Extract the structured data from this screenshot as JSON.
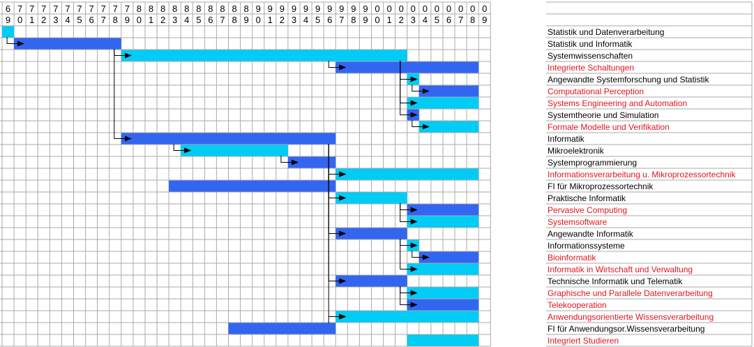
{
  "chart_data": {
    "type": "gantt",
    "year_header": [
      {
        "year": 1969,
        "tens": "6",
        "ones": "9"
      },
      {
        "year": 1970,
        "tens": "7",
        "ones": "0"
      },
      {
        "year": 1971,
        "tens": "7",
        "ones": "1"
      },
      {
        "year": 1972,
        "tens": "7",
        "ones": "2"
      },
      {
        "year": 1973,
        "tens": "7",
        "ones": "3"
      },
      {
        "year": 1974,
        "tens": "7",
        "ones": "4"
      },
      {
        "year": 1975,
        "tens": "7",
        "ones": "5"
      },
      {
        "year": 1976,
        "tens": "7",
        "ones": "6"
      },
      {
        "year": 1977,
        "tens": "7",
        "ones": "7"
      },
      {
        "year": 1978,
        "tens": "7",
        "ones": "8"
      },
      {
        "year": 1979,
        "tens": "7",
        "ones": "9"
      },
      {
        "year": 1980,
        "tens": "8",
        "ones": "0"
      },
      {
        "year": 1981,
        "tens": "8",
        "ones": "1"
      },
      {
        "year": 1982,
        "tens": "8",
        "ones": "2"
      },
      {
        "year": 1983,
        "tens": "8",
        "ones": "3"
      },
      {
        "year": 1984,
        "tens": "8",
        "ones": "4"
      },
      {
        "year": 1985,
        "tens": "8",
        "ones": "5"
      },
      {
        "year": 1986,
        "tens": "8",
        "ones": "6"
      },
      {
        "year": 1987,
        "tens": "8",
        "ones": "7"
      },
      {
        "year": 1988,
        "tens": "8",
        "ones": "8"
      },
      {
        "year": 1989,
        "tens": "8",
        "ones": "9"
      },
      {
        "year": 1990,
        "tens": "9",
        "ones": "0"
      },
      {
        "year": 1991,
        "tens": "9",
        "ones": "1"
      },
      {
        "year": 1992,
        "tens": "9",
        "ones": "2"
      },
      {
        "year": 1993,
        "tens": "9",
        "ones": "3"
      },
      {
        "year": 1994,
        "tens": "9",
        "ones": "4"
      },
      {
        "year": 1995,
        "tens": "9",
        "ones": "5"
      },
      {
        "year": 1996,
        "tens": "9",
        "ones": "6"
      },
      {
        "year": 1997,
        "tens": "9",
        "ones": "7"
      },
      {
        "year": 1998,
        "tens": "9",
        "ones": "8"
      },
      {
        "year": 1999,
        "tens": "9",
        "ones": "9"
      },
      {
        "year": 2000,
        "tens": "0",
        "ones": "0"
      },
      {
        "year": 2001,
        "tens": "0",
        "ones": "1"
      },
      {
        "year": 2002,
        "tens": "0",
        "ones": "2"
      },
      {
        "year": 2003,
        "tens": "0",
        "ones": "3"
      },
      {
        "year": 2004,
        "tens": "0",
        "ones": "4"
      },
      {
        "year": 2005,
        "tens": "0",
        "ones": "5"
      },
      {
        "year": 2006,
        "tens": "0",
        "ones": "6"
      },
      {
        "year": 2007,
        "tens": "0",
        "ones": "7"
      },
      {
        "year": 2008,
        "tens": "0",
        "ones": "8"
      },
      {
        "year": 2009,
        "tens": "0",
        "ones": "9"
      }
    ],
    "colors": {
      "bar_blue": "#3366f0",
      "bar_cyan": "#00ccf5",
      "label_black": "#000000",
      "label_red": "#e0151b",
      "grid": "#aaaaaa",
      "connector": "#000000"
    },
    "rows": [
      {
        "label": "Statistik und Datenverarbeitung",
        "start": 1969,
        "end": 1970,
        "color": "cyan",
        "label_color": "black"
      },
      {
        "label": "Statistik und Informatik",
        "start": 1970,
        "end": 1979,
        "color": "blue",
        "label_color": "black"
      },
      {
        "label": "Systemwissenschaften",
        "start": 1979,
        "end": 2003,
        "color": "cyan",
        "label_color": "black"
      },
      {
        "label": "Integrierte Schaltungen",
        "start": 1997,
        "end": 2009,
        "color": "blue",
        "label_color": "red"
      },
      {
        "label": "Angewandte Systemforschung und Statistik",
        "start": 2003,
        "end": 2004,
        "color": "cyan",
        "label_color": "black"
      },
      {
        "label": "Computational Perception",
        "start": 2004,
        "end": 2009,
        "color": "blue",
        "label_color": "red"
      },
      {
        "label": "Systems Engineering and Automation",
        "start": 2003,
        "end": 2009,
        "color": "cyan",
        "label_color": "red"
      },
      {
        "label": "Systemtheorie und Simulation",
        "start": 2003,
        "end": 2004,
        "color": "blue",
        "label_color": "black"
      },
      {
        "label": "Formale Modelle und Verifikation",
        "start": 2004,
        "end": 2009,
        "color": "cyan",
        "label_color": "red"
      },
      {
        "label": "Informatik",
        "start": 1979,
        "end": 1997,
        "color": "blue",
        "label_color": "black"
      },
      {
        "label": "Mikroelektronik",
        "start": 1984,
        "end": 1993,
        "color": "cyan",
        "label_color": "black"
      },
      {
        "label": "Systemprogrammierung",
        "start": 1993,
        "end": 1997,
        "color": "blue",
        "label_color": "black"
      },
      {
        "label": "Informationsverarbeitung u. Mikroprozessortechnik",
        "start": 1997,
        "end": 2009,
        "color": "cyan",
        "label_color": "red"
      },
      {
        "label": "FI für Mikroprozessortechnik",
        "start": 1983,
        "end": 1997,
        "color": "blue",
        "label_color": "black"
      },
      {
        "label": "Praktische Informatik",
        "start": 1997,
        "end": 2003,
        "color": "cyan",
        "label_color": "black"
      },
      {
        "label": "Pervasive Computing",
        "start": 2003,
        "end": 2009,
        "color": "blue",
        "label_color": "red"
      },
      {
        "label": "Systemsoftware",
        "start": 2003,
        "end": 2009,
        "color": "cyan",
        "label_color": "red"
      },
      {
        "label": "Angewandte Informatik",
        "start": 1997,
        "end": 2003,
        "color": "blue",
        "label_color": "black"
      },
      {
        "label": "Informationssysteme",
        "start": 2003,
        "end": 2004,
        "color": "cyan",
        "label_color": "black"
      },
      {
        "label": "Bioinformatik",
        "start": 2004,
        "end": 2009,
        "color": "blue",
        "label_color": "red"
      },
      {
        "label": "Informatik in Wirtschaft und Verwaltung",
        "start": 2003,
        "end": 2009,
        "color": "cyan",
        "label_color": "red"
      },
      {
        "label": "Technische Informatik und Telematik",
        "start": 1997,
        "end": 2003,
        "color": "blue",
        "label_color": "black"
      },
      {
        "label": "Graphische und Parallele Datenverarbeitung",
        "start": 2003,
        "end": 2009,
        "color": "cyan",
        "label_color": "red"
      },
      {
        "label": "Telekooperation",
        "start": 2003,
        "end": 2009,
        "color": "blue",
        "label_color": "red"
      },
      {
        "label": "Anwendungsorientierte Wissensverarbeitung",
        "start": 1997,
        "end": 2009,
        "color": "cyan",
        "label_color": "red"
      },
      {
        "label": "FI für Anwendungsor.Wissensverarbeitung",
        "start": 1988,
        "end": 1997,
        "color": "blue",
        "label_color": "black"
      },
      {
        "label": "Integriert Studieren",
        "start": 2003,
        "end": 2009,
        "color": "cyan",
        "label_color": "red"
      }
    ],
    "links": [
      {
        "from": 0,
        "to": 1
      },
      {
        "from": 1,
        "to": 2
      },
      {
        "from": 2,
        "to": 3
      },
      {
        "from": 2,
        "to": 4
      },
      {
        "from": 4,
        "to": 5
      },
      {
        "from": 2,
        "to": 6
      },
      {
        "from": 2,
        "to": 7
      },
      {
        "from": 7,
        "to": 8
      },
      {
        "from": 1,
        "to": 9
      },
      {
        "from": 9,
        "to": 10
      },
      {
        "from": 10,
        "to": 11
      },
      {
        "from": 11,
        "to": 12
      },
      {
        "from": 13,
        "to": 12
      },
      {
        "from": 9,
        "to": 14
      },
      {
        "from": 14,
        "to": 15
      },
      {
        "from": 14,
        "to": 16
      },
      {
        "from": 9,
        "to": 17
      },
      {
        "from": 17,
        "to": 18
      },
      {
        "from": 18,
        "to": 19
      },
      {
        "from": 17,
        "to": 20
      },
      {
        "from": 9,
        "to": 21
      },
      {
        "from": 21,
        "to": 22
      },
      {
        "from": 21,
        "to": 23
      },
      {
        "from": 9,
        "to": 24
      },
      {
        "from": 25,
        "to": 24
      }
    ]
  }
}
